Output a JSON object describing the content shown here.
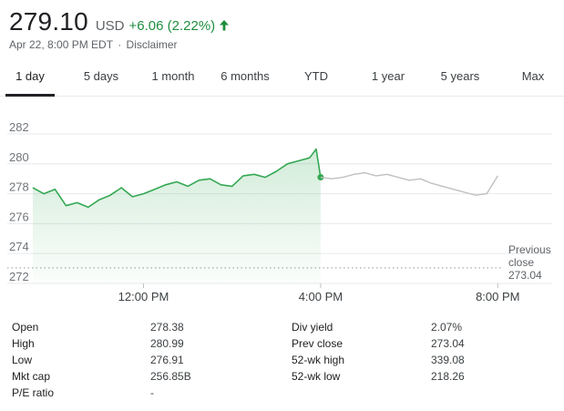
{
  "quote": {
    "price": "279.10",
    "currency": "USD",
    "change": "+6.06 (2.22%)",
    "timestamp": "Apr 22, 8:00 PM EDT",
    "separator": "·",
    "disclaimer": "Disclaimer",
    "up_color": "#1e8e3e",
    "arrow_icon": "arrow-up-icon"
  },
  "tabs": [
    {
      "label": "1 day",
      "active": true
    },
    {
      "label": "5 days",
      "active": false
    },
    {
      "label": "1 month",
      "active": false
    },
    {
      "label": "6 months",
      "active": false
    },
    {
      "label": "YTD",
      "active": false
    },
    {
      "label": "1 year",
      "active": false
    },
    {
      "label": "5 years",
      "active": false
    },
    {
      "label": "Max",
      "active": false
    }
  ],
  "chart_data": {
    "type": "line",
    "ylim": [
      272,
      282
    ],
    "y_ticks": [
      "282",
      "280",
      "278",
      "276",
      "274",
      "272"
    ],
    "x_ticks": [
      "12:00 PM",
      "4:00 PM",
      "8:00 PM"
    ],
    "grid": true,
    "reference_line": {
      "label_line1": "Previous",
      "label_line2": "close",
      "value_label": "273.04",
      "value": 273.04
    },
    "series": [
      {
        "segment": "regular",
        "color": "#34a853",
        "x": [
          9.5,
          9.75,
          10,
          10.25,
          10.5,
          10.75,
          11,
          11.25,
          11.5,
          11.75,
          12,
          12.25,
          12.5,
          12.75,
          13,
          13.25,
          13.5,
          13.75,
          14,
          14.25,
          14.5,
          14.75,
          15,
          15.25,
          15.5,
          15.75,
          15.9,
          16
        ],
        "values": [
          278.4,
          278.0,
          278.3,
          277.2,
          277.4,
          277.1,
          277.6,
          277.9,
          278.4,
          277.8,
          278.0,
          278.3,
          278.6,
          278.8,
          278.5,
          278.9,
          279.0,
          278.6,
          278.5,
          279.2,
          279.3,
          279.1,
          279.5,
          280.0,
          280.2,
          280.4,
          280.99,
          279.1
        ]
      },
      {
        "segment": "after-hours",
        "color": "#c0c0c0",
        "x": [
          16,
          16.25,
          16.5,
          16.75,
          17,
          17.25,
          17.5,
          17.75,
          18,
          18.25,
          18.5,
          18.75,
          19,
          19.25,
          19.5,
          19.75,
          20
        ],
        "values": [
          279.1,
          279.0,
          279.1,
          279.3,
          279.4,
          279.2,
          279.3,
          279.1,
          278.9,
          279.0,
          278.7,
          278.5,
          278.3,
          278.1,
          277.9,
          278.0,
          279.2
        ]
      }
    ]
  },
  "stats": {
    "left": [
      {
        "label": "Open",
        "value": "278.38"
      },
      {
        "label": "High",
        "value": "280.99"
      },
      {
        "label": "Low",
        "value": "276.91"
      },
      {
        "label": "Mkt cap",
        "value": "256.85B"
      },
      {
        "label": "P/E ratio",
        "value": "-"
      }
    ],
    "right": [
      {
        "label": "Div yield",
        "value": "2.07%"
      },
      {
        "label": "Prev close",
        "value": "273.04"
      },
      {
        "label": "52-wk high",
        "value": "339.08"
      },
      {
        "label": "52-wk low",
        "value": "218.26"
      }
    ]
  }
}
